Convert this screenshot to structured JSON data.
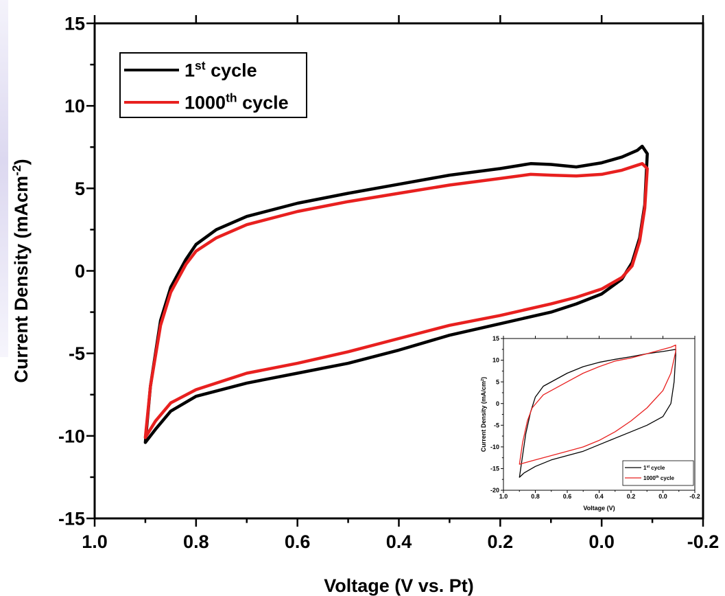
{
  "chart_data": [
    {
      "type": "line",
      "xlabel": "Voltage (V vs. Pt)",
      "ylabel": {
        "base": "Current Density (mAcm",
        "sup": "-2",
        "tail": ")"
      },
      "xlim": [
        1.0,
        -0.2
      ],
      "ylim": [
        -15,
        15
      ],
      "x_ticks": [
        "1.0",
        "0.8",
        "0.6",
        "0.4",
        "0.2",
        "0.0",
        "-0.2"
      ],
      "y_ticks": [
        "-15",
        "-10",
        "-5",
        "0",
        "5",
        "10",
        "15"
      ],
      "grid": false,
      "legend": "top-left",
      "series": [
        {
          "name": {
            "base": "1",
            "sup": "st",
            "tail": " cycle"
          },
          "color": "#000000",
          "upper": [
            [
              0.9,
              -10.4
            ],
            [
              0.89,
              -7
            ],
            [
              0.87,
              -3
            ],
            [
              0.85,
              -1
            ],
            [
              0.82,
              0.7
            ],
            [
              0.8,
              1.6
            ],
            [
              0.76,
              2.5
            ],
            [
              0.7,
              3.3
            ],
            [
              0.6,
              4.1
            ],
            [
              0.5,
              4.7
            ],
            [
              0.4,
              5.25
            ],
            [
              0.3,
              5.8
            ],
            [
              0.2,
              6.2
            ],
            [
              0.14,
              6.5
            ],
            [
              0.1,
              6.45
            ],
            [
              0.05,
              6.3
            ],
            [
              0.0,
              6.55
            ],
            [
              -0.04,
              6.9
            ],
            [
              -0.07,
              7.3
            ],
            [
              -0.08,
              7.55
            ]
          ],
          "lower": [
            [
              -0.09,
              7.1
            ],
            [
              -0.085,
              4
            ],
            [
              -0.075,
              2
            ],
            [
              -0.06,
              0.5
            ],
            [
              -0.04,
              -0.5
            ],
            [
              0.0,
              -1.4
            ],
            [
              0.05,
              -2.0
            ],
            [
              0.1,
              -2.5
            ],
            [
              0.2,
              -3.2
            ],
            [
              0.3,
              -3.9
            ],
            [
              0.4,
              -4.8
            ],
            [
              0.5,
              -5.6
            ],
            [
              0.6,
              -6.2
            ],
            [
              0.7,
              -6.8
            ],
            [
              0.8,
              -7.6
            ],
            [
              0.85,
              -8.5
            ],
            [
              0.88,
              -9.6
            ],
            [
              0.9,
              -10.4
            ]
          ]
        },
        {
          "name": {
            "base": "1000",
            "sup": "th",
            "tail": " cycle"
          },
          "color": "#e8201f",
          "upper": [
            [
              0.9,
              -10.1
            ],
            [
              0.89,
              -7
            ],
            [
              0.87,
              -3.3
            ],
            [
              0.85,
              -1.3
            ],
            [
              0.82,
              0.4
            ],
            [
              0.8,
              1.2
            ],
            [
              0.76,
              2.0
            ],
            [
              0.7,
              2.8
            ],
            [
              0.6,
              3.6
            ],
            [
              0.5,
              4.2
            ],
            [
              0.4,
              4.7
            ],
            [
              0.3,
              5.2
            ],
            [
              0.2,
              5.6
            ],
            [
              0.14,
              5.85
            ],
            [
              0.1,
              5.8
            ],
            [
              0.05,
              5.75
            ],
            [
              0.0,
              5.85
            ],
            [
              -0.04,
              6.1
            ],
            [
              -0.07,
              6.4
            ],
            [
              -0.08,
              6.5
            ]
          ],
          "lower": [
            [
              -0.09,
              6.2
            ],
            [
              -0.085,
              3.8
            ],
            [
              -0.075,
              1.8
            ],
            [
              -0.06,
              0.3
            ],
            [
              -0.04,
              -0.4
            ],
            [
              0.0,
              -1.1
            ],
            [
              0.05,
              -1.6
            ],
            [
              0.1,
              -2.0
            ],
            [
              0.2,
              -2.7
            ],
            [
              0.3,
              -3.3
            ],
            [
              0.4,
              -4.1
            ],
            [
              0.5,
              -4.9
            ],
            [
              0.6,
              -5.6
            ],
            [
              0.7,
              -6.2
            ],
            [
              0.8,
              -7.2
            ],
            [
              0.85,
              -8.0
            ],
            [
              0.88,
              -9.1
            ],
            [
              0.9,
              -10.1
            ]
          ]
        }
      ]
    },
    {
      "type": "line",
      "xlabel": "Voltage (V)",
      "ylabel": {
        "base": "Current Density (mA/cm",
        "sup": "2",
        "tail": ")"
      },
      "xlim": [
        1.0,
        -0.2
      ],
      "ylim": [
        -20,
        15
      ],
      "x_ticks": [
        "1.0",
        "0.8",
        "0.6",
        "0.4",
        "0.2",
        "0.0",
        "-0.2"
      ],
      "y_ticks": [
        "-20",
        "-15",
        "-10",
        "-5",
        "0",
        "5",
        "10",
        "15"
      ],
      "grid": false,
      "legend": "bottom-right",
      "series": [
        {
          "name": {
            "base": "1",
            "sup": "st",
            "tail": " cycle"
          },
          "color": "#000000",
          "upper": [
            [
              0.9,
              -17
            ],
            [
              0.88,
              -12
            ],
            [
              0.86,
              -7
            ],
            [
              0.83,
              -2
            ],
            [
              0.8,
              1.5
            ],
            [
              0.75,
              4
            ],
            [
              0.6,
              7
            ],
            [
              0.5,
              8.5
            ],
            [
              0.4,
              9.5
            ],
            [
              0.3,
              10.2
            ],
            [
              0.2,
              10.8
            ],
            [
              0.1,
              11.5
            ],
            [
              0.0,
              12
            ],
            [
              -0.05,
              12.3
            ],
            [
              -0.08,
              12.5
            ]
          ],
          "lower": [
            [
              -0.08,
              11
            ],
            [
              -0.07,
              5
            ],
            [
              -0.05,
              0
            ],
            [
              0.0,
              -3
            ],
            [
              0.1,
              -5
            ],
            [
              0.2,
              -6.5
            ],
            [
              0.3,
              -8
            ],
            [
              0.4,
              -9.5
            ],
            [
              0.5,
              -11
            ],
            [
              0.6,
              -12
            ],
            [
              0.7,
              -13
            ],
            [
              0.8,
              -14.5
            ],
            [
              0.87,
              -16
            ],
            [
              0.9,
              -17
            ]
          ]
        },
        {
          "name": {
            "base": "1000",
            "sup": "th",
            "tail": " cycle"
          },
          "color": "#e8201f",
          "upper": [
            [
              0.9,
              -14
            ],
            [
              0.88,
              -9
            ],
            [
              0.85,
              -4
            ],
            [
              0.82,
              -1
            ],
            [
              0.75,
              2
            ],
            [
              0.6,
              5
            ],
            [
              0.5,
              7
            ],
            [
              0.4,
              8.5
            ],
            [
              0.3,
              9.8
            ],
            [
              0.2,
              10.5
            ],
            [
              0.1,
              11.5
            ],
            [
              0.0,
              12.5
            ],
            [
              -0.05,
              13
            ],
            [
              -0.08,
              13.5
            ]
          ],
          "lower": [
            [
              -0.08,
              12
            ],
            [
              -0.05,
              7
            ],
            [
              0.0,
              3
            ],
            [
              0.1,
              -1
            ],
            [
              0.2,
              -4
            ],
            [
              0.3,
              -6.5
            ],
            [
              0.4,
              -8.5
            ],
            [
              0.5,
              -10
            ],
            [
              0.6,
              -11
            ],
            [
              0.7,
              -12
            ],
            [
              0.8,
              -13
            ],
            [
              0.9,
              -14
            ]
          ]
        }
      ]
    }
  ]
}
